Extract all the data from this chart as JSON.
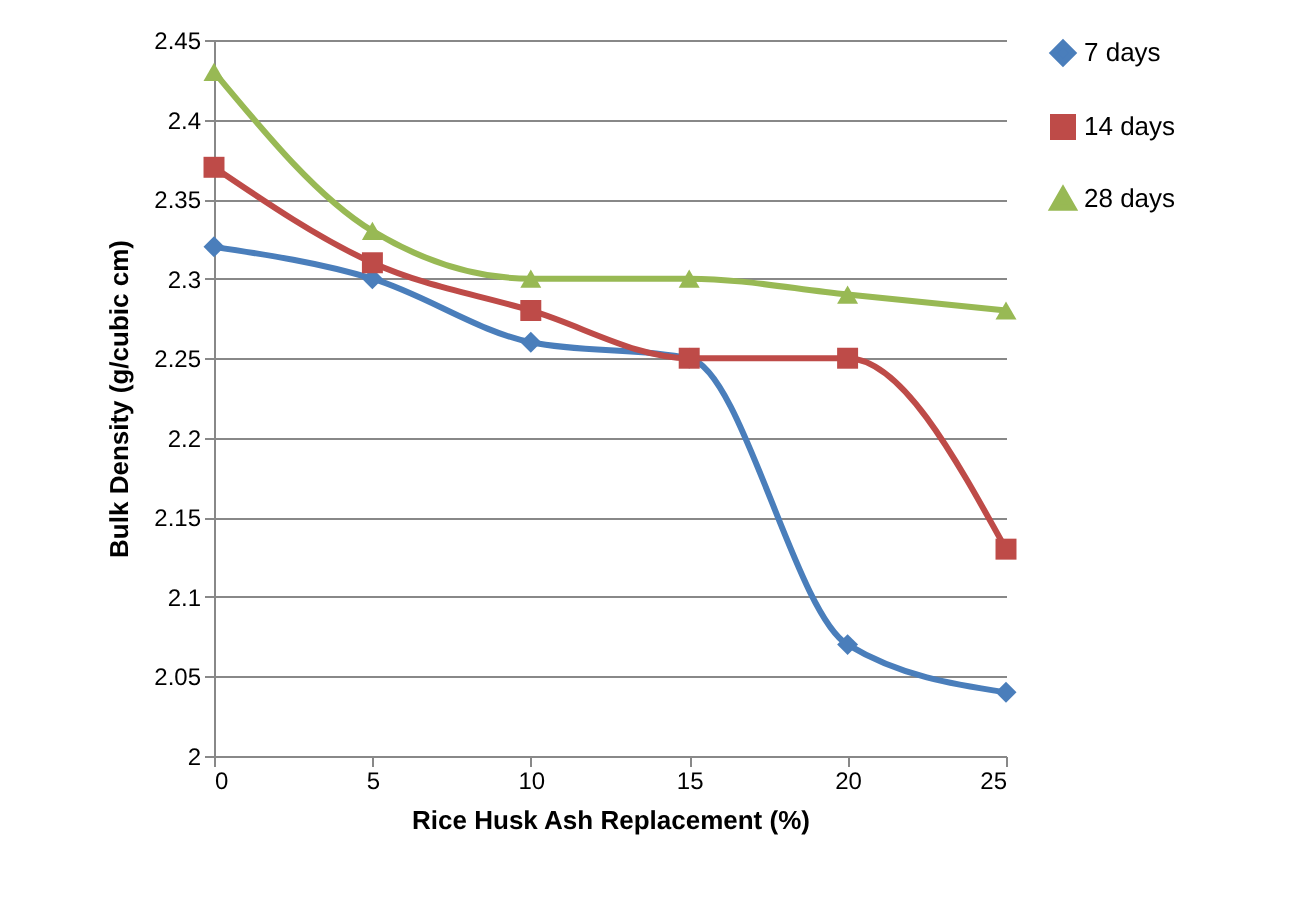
{
  "chart_data": {
    "type": "line",
    "xlabel": "Rice Husk Ash Replacement (%)",
    "ylabel": "Bulk Density (g/cubic cm)",
    "x": [
      0,
      5,
      10,
      15,
      20,
      25
    ],
    "series": [
      {
        "name": "7 days",
        "color": "#4a7ebb",
        "marker": "diamond",
        "values": [
          2.32,
          2.3,
          2.26,
          2.25,
          2.07,
          2.04
        ]
      },
      {
        "name": "14 days",
        "color": "#be4b48",
        "marker": "square",
        "values": [
          2.37,
          2.31,
          2.28,
          2.25,
          2.25,
          2.13
        ]
      },
      {
        "name": "28 days",
        "color": "#98b954",
        "marker": "triangle",
        "values": [
          2.43,
          2.33,
          2.3,
          2.3,
          2.29,
          2.28
        ]
      }
    ],
    "xlim": [
      0,
      25
    ],
    "xticks": [
      0,
      5,
      10,
      15,
      20,
      25
    ],
    "ylim": [
      2,
      2.45
    ],
    "yticks": [
      2,
      2.05,
      2.1,
      2.15,
      2.2,
      2.25,
      2.3,
      2.35,
      2.4,
      2.45
    ],
    "grid": "y",
    "legend": "right",
    "line_style": "solid"
  }
}
